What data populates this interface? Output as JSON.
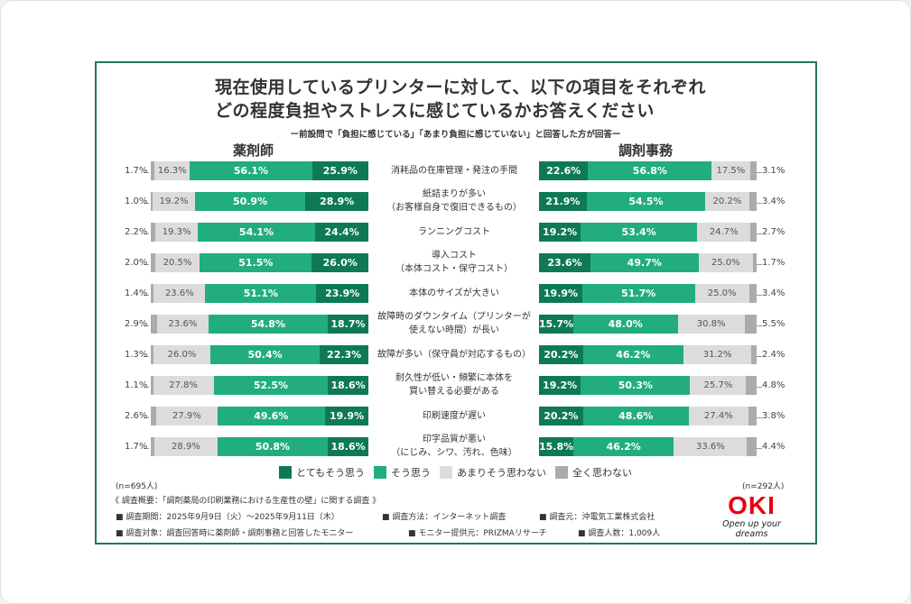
{
  "chart_data": {
    "type": "bar",
    "orientation": "horizontal-stacked",
    "title": "現在使用しているプリンターに対して、以下の項目をそれぞれ\nどの程度負担やストレスに感じているかお答えください",
    "subtitle": "ー前設問で「負担に感じている」「あまり負担に感じていない」と回答した方が回答ー",
    "categories": [
      "消耗品の在庫管理・発注の手間",
      "紙詰まりが多い\n（お客様自身で復旧できるもの）",
      "ランニングコスト",
      "導入コスト\n（本体コスト・保守コスト）",
      "本体のサイズが大きい",
      "故障時のダウンタイム（プリンターが\n使えない時間）が長い",
      "故障が多い（保守員が対応するもの）",
      "耐久性が低い・頻繁に本体を\n買い替える必要がある",
      "印刷速度が遅い",
      "印字品質が悪い\n（にじみ、シワ、汚れ、色味）"
    ],
    "legend": [
      {
        "label": "とてもそう思う",
        "color": "#0e7a55"
      },
      {
        "label": "そう思う",
        "color": "#22ad80"
      },
      {
        "label": "あまりそう思わない",
        "color": "#dcdcdc"
      },
      {
        "label": "全く思わない",
        "color": "#ababab"
      }
    ],
    "legend_position": "bottom",
    "panels": [
      {
        "name": "薬剤師",
        "n": "(n=695人)",
        "series": [
          {
            "name": "とてもそう思う",
            "values": [
              25.9,
              28.9,
              24.4,
              26.0,
              23.9,
              18.7,
              22.3,
              18.6,
              19.9,
              18.6
            ]
          },
          {
            "name": "そう思う",
            "values": [
              56.1,
              50.9,
              54.1,
              51.5,
              51.1,
              54.8,
              50.4,
              52.5,
              49.6,
              50.8
            ]
          },
          {
            "name": "あまりそう思わない",
            "values": [
              16.3,
              19.2,
              19.3,
              20.5,
              23.6,
              23.6,
              26.0,
              27.8,
              27.9,
              28.9
            ]
          },
          {
            "name": "全く思わない",
            "values": [
              1.7,
              1.0,
              2.2,
              2.0,
              1.4,
              2.9,
              1.3,
              1.1,
              2.6,
              1.7
            ]
          }
        ]
      },
      {
        "name": "調剤事務",
        "n": "(n=292人)",
        "series": [
          {
            "name": "とてもそう思う",
            "values": [
              22.6,
              21.9,
              19.2,
              23.6,
              19.9,
              15.7,
              20.2,
              19.2,
              20.2,
              15.8
            ]
          },
          {
            "name": "そう思う",
            "values": [
              56.8,
              54.5,
              53.4,
              49.7,
              51.7,
              48.0,
              46.2,
              50.3,
              48.6,
              46.2
            ]
          },
          {
            "name": "あまりそう思わない",
            "values": [
              17.5,
              20.2,
              24.7,
              25.0,
              25.0,
              30.8,
              31.2,
              25.7,
              27.4,
              33.6
            ]
          },
          {
            "name": "全く思わない",
            "values": [
              3.1,
              3.4,
              2.7,
              1.7,
              3.4,
              5.5,
              2.4,
              4.8,
              3.8,
              4.4
            ]
          }
        ]
      }
    ],
    "xlim": [
      0,
      100
    ],
    "grid": false
  },
  "footer": {
    "overview": "《 調査概要：「調剤薬局の印刷業務における生産性の壁」に関する調査 》",
    "period": "■ 調査期間：2025年9月9日（火）～2025年9月11日（木）",
    "method": "■ 調査方法：インターネット調査",
    "source": "■ 調査元：沖電気工業株式会社",
    "target": "■ 調査対象：調査回答時に薬剤師・調剤事務と回答したモニター",
    "provider": "■ モニター提供元：PRIZMAリサーチ",
    "count": "■ 調査人数：1,009人"
  },
  "logo": {
    "text": "OKI",
    "tagline": "Open up your dreams",
    "color": "#e60012"
  },
  "colors": {
    "frame": "#1f7a52"
  }
}
